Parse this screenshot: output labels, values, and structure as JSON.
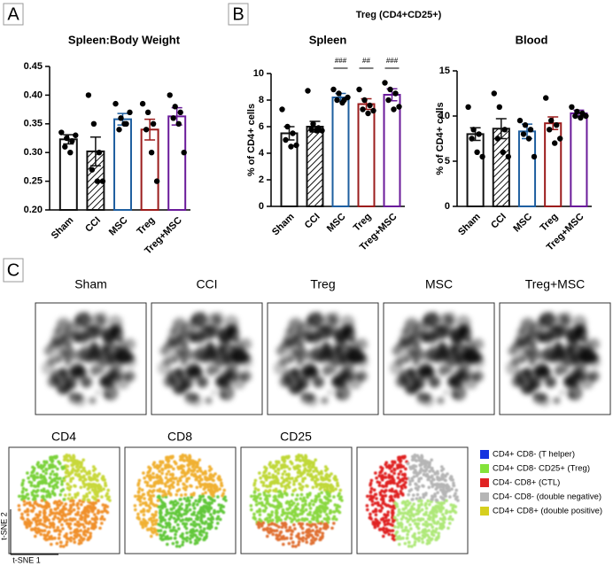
{
  "panels": [
    "A",
    "B",
    "C"
  ],
  "supertitle": "Treg (CD4+CD25+)",
  "chart_data": [
    {
      "type": "bar",
      "title": "Spleen:Body Weight",
      "categories": [
        "Sham",
        "CCI",
        "MSC",
        "Treg",
        "Treg+MSC"
      ],
      "values": [
        0.323,
        0.302,
        0.358,
        0.34,
        0.363
      ],
      "errors": [
        0.008,
        0.025,
        0.01,
        0.018,
        0.015
      ],
      "points": [
        [
          0.335,
          0.325,
          0.32,
          0.31,
          0.3,
          0.33
        ],
        [
          0.4,
          0.35,
          0.3,
          0.27,
          0.25,
          0.25
        ],
        [
          0.385,
          0.36,
          0.35,
          0.34,
          0.35,
          0.37
        ],
        [
          0.385,
          0.37,
          0.35,
          0.34,
          0.3,
          0.25
        ],
        [
          0.4,
          0.38,
          0.37,
          0.36,
          0.35,
          0.3
        ]
      ],
      "colors": [
        "#111111",
        "#111111",
        "#1f5fa0",
        "#9b1c1c",
        "#6a1b9a"
      ],
      "hatch": [
        false,
        true,
        false,
        false,
        false
      ],
      "ylim": [
        0.2,
        0.45
      ],
      "yticks": [
        {
          "value": 0.2,
          "label": "0.20"
        },
        0.25,
        {
          "value": 0.3,
          "label": "0.30"
        },
        0.35,
        {
          "value": 0.4,
          "label": "0.40"
        },
        0.45
      ]
    },
    {
      "type": "bar",
      "title": "Spleen",
      "y_label": "% of CD4+ cells",
      "categories": [
        "Sham",
        "CCI",
        "MSC",
        "Treg",
        "Treg+MSC"
      ],
      "values": [
        5.5,
        6.0,
        8.2,
        7.7,
        8.4
      ],
      "errors": [
        0.5,
        0.4,
        0.3,
        0.4,
        0.45
      ],
      "points": [
        [
          7.3,
          6.0,
          5.5,
          5.0,
          4.5,
          4.6
        ],
        [
          8.7,
          6.2,
          5.9,
          5.8,
          5.7,
          5.7
        ],
        [
          8.8,
          8.5,
          8.0,
          8.0,
          7.8,
          8.2
        ],
        [
          8.8,
          8.0,
          7.6,
          7.3,
          7.0,
          7.2
        ],
        [
          9.3,
          8.8,
          8.5,
          8.0,
          7.3,
          7.5
        ]
      ],
      "colors": [
        "#111111",
        "#111111",
        "#1f5fa0",
        "#9b1c1c",
        "#6a1b9a"
      ],
      "hatch": [
        false,
        true,
        false,
        false,
        false
      ],
      "annotations": [
        null,
        null,
        "###",
        "##",
        "###"
      ],
      "ylim": [
        0,
        10
      ],
      "yticks": [
        0,
        2,
        4,
        6,
        8,
        10
      ]
    },
    {
      "type": "bar",
      "title": "Blood",
      "y_label": "% of CD4+ cells",
      "categories": [
        "Sham",
        "CCI",
        "MSC",
        "Treg",
        "Treg+MSC"
      ],
      "values": [
        8.0,
        8.6,
        8.3,
        9.2,
        10.3
      ],
      "errors": [
        0.7,
        1.1,
        0.8,
        0.7,
        0.35
      ],
      "points": [
        [
          11,
          8.5,
          8.0,
          7.5,
          6.0,
          5.5
        ],
        [
          12.5,
          11,
          8.5,
          7.5,
          6.0,
          5.5
        ],
        [
          9.5,
          9.0,
          8.5,
          8.0,
          7.5,
          5.5
        ],
        [
          12,
          9.5,
          9.0,
          8.5,
          7.0,
          7.5
        ],
        [
          11,
          10.5,
          10.3,
          10,
          9.8,
          10
        ]
      ],
      "colors": [
        "#111111",
        "#111111",
        "#1f5fa0",
        "#9b1c1c",
        "#6a1b9a"
      ],
      "hatch": [
        false,
        true,
        false,
        false,
        false
      ],
      "ylim": [
        0,
        15
      ],
      "yticks": [
        0,
        5,
        10,
        15
      ]
    }
  ],
  "tsne": {
    "samples": [
      "Sham",
      "CCI",
      "Treg",
      "MSC",
      "Treg+MSC"
    ],
    "markers": [
      "CD4",
      "CD8",
      "CD25"
    ],
    "x_label": "t-SNE 1",
    "y_label": "t-SNE 2",
    "legend": [
      {
        "name": "CD4+ CD8- (T helper)",
        "color": "#1533e0"
      },
      {
        "name": "CD4+ CD8- CD25+ (Treg)",
        "color": "#84e33a"
      },
      {
        "name": "CD4- CD8+ (CTL)",
        "color": "#e02424"
      },
      {
        "name": "CD4- CD8- (double negative)",
        "color": "#b5b5b5"
      },
      {
        "name": "CD4+ CD8+ (double positive)",
        "color": "#d6cf1e"
      }
    ]
  }
}
